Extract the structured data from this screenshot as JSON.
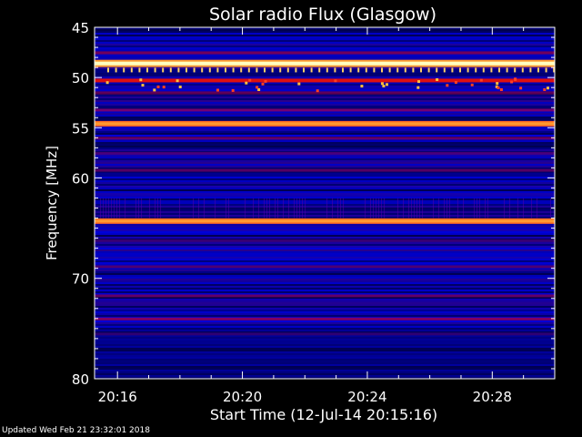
{
  "chart_data": {
    "type": "heatmap",
    "title": "Solar radio Flux (Glasgow)",
    "xlabel": "Start Time (12-Jul-14 20:15:16)",
    "ylabel": "Frequency [MHz]",
    "y_range_mhz": [
      45,
      80
    ],
    "y_ticks": [
      {
        "value": 45,
        "label": "45"
      },
      {
        "value": 50,
        "label": "50"
      },
      {
        "value": 55,
        "label": "55"
      },
      {
        "value": 60,
        "label": "60"
      },
      {
        "value": 70,
        "label": "70"
      },
      {
        "value": 80,
        "label": "80"
      }
    ],
    "x_range": [
      "20:15:16",
      "20:30:00"
    ],
    "x_ticks": [
      {
        "time": "20:16",
        "label": "20:16"
      },
      {
        "time": "20:20",
        "label": "20:20"
      },
      {
        "time": "20:24",
        "label": "20:24"
      },
      {
        "time": "20:28",
        "label": "20:28"
      }
    ],
    "colors": {
      "background": "#0000aa",
      "low": "#000050",
      "mid": "#aa0066",
      "high": "#ff9a30",
      "peak": "#ffffc0"
    },
    "bright_bands_mhz": [
      {
        "freq": 48.6,
        "intensity": "peak"
      },
      {
        "freq": 50.3,
        "intensity": "high"
      },
      {
        "freq": 54.6,
        "intensity": "high"
      },
      {
        "freq": 64.3,
        "intensity": "high"
      }
    ]
  },
  "footer": {
    "updated": "Updated Wed Feb 21 23:32:01 2018"
  }
}
